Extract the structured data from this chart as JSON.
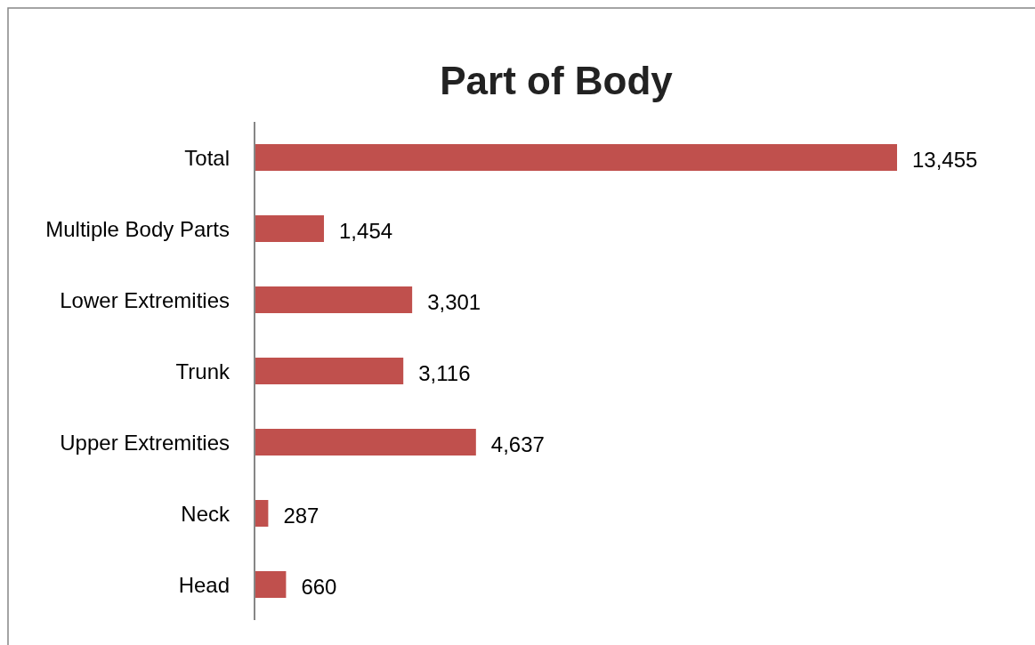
{
  "chart_data": {
    "type": "bar",
    "orientation": "horizontal",
    "title": "Part of Body",
    "categories": [
      "Total",
      "Multiple Body Parts",
      "Lower Extremities",
      "Trunk",
      "Upper Extremities",
      "Neck",
      "Head"
    ],
    "values": [
      13455,
      1454,
      3301,
      3116,
      4637,
      287,
      660
    ],
    "value_labels": [
      "13,455",
      "1,454",
      "3,301",
      "3,116",
      "4,637",
      "287",
      "660"
    ],
    "color": "#c0504d"
  }
}
